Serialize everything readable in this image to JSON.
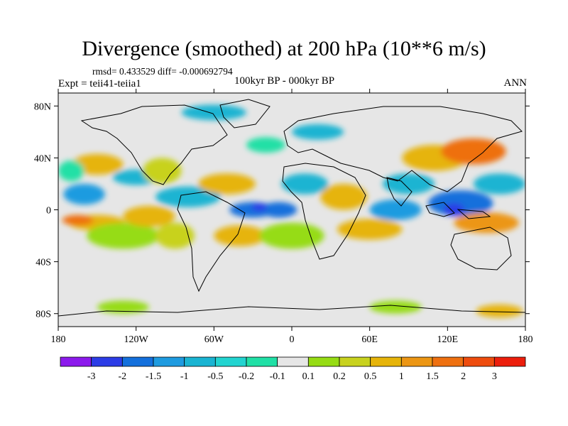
{
  "title": "Divergence (smoothed) at 200 hPa (10**6 m/s)",
  "stats": "rmsd= 0.433529 diff= -0.000692794",
  "experiment": "Expt = teii41-teiia1",
  "period": "100kyr BP - 000kyr BP",
  "season": "ANN",
  "map": {
    "projection": "cylindrical equidistant",
    "lon_range": [
      -180,
      180
    ],
    "lat_range": [
      -90,
      90
    ],
    "x_ticks": [
      {
        "value": -180,
        "label": "180"
      },
      {
        "value": -120,
        "label": "120W"
      },
      {
        "value": -60,
        "label": "60W"
      },
      {
        "value": 0,
        "label": "0"
      },
      {
        "value": 60,
        "label": "60E"
      },
      {
        "value": 120,
        "label": "120E"
      },
      {
        "value": 180,
        "label": "180"
      }
    ],
    "y_ticks": [
      {
        "value": 80,
        "label": "80N"
      },
      {
        "value": 40,
        "label": "40N"
      },
      {
        "value": 0,
        "label": "0"
      },
      {
        "value": -40,
        "label": "40S"
      },
      {
        "value": -80,
        "label": "80S"
      }
    ],
    "background_color": "#e6e6e6"
  },
  "colorbar": {
    "colors": [
      "#8c1aec",
      "#2c3ce6",
      "#1470dc",
      "#1e9be0",
      "#1ab4d2",
      "#22d4d0",
      "#20e0a6",
      "#e6e6e6",
      "#96dc14",
      "#c8d21e",
      "#e6b40a",
      "#ec9614",
      "#ee7010",
      "#ee4c0e",
      "#ec1e0c"
    ],
    "labels": [
      "-3",
      "-2",
      "-1.5",
      "-1",
      "-0.5",
      "-0.2",
      "-0.1",
      "0.1",
      "0.2",
      "0.5",
      "1",
      "1.5",
      "2",
      "3"
    ]
  },
  "regions": [
    {
      "lon": -160,
      "lat": 12,
      "rlon": 16,
      "rlat": 8,
      "c": "#1e9be0"
    },
    {
      "lon": -150,
      "lat": -10,
      "rlon": 22,
      "rlat": 6,
      "c": "#e6b40a"
    },
    {
      "lon": -165,
      "lat": -8,
      "rlon": 12,
      "rlat": 4,
      "c": "#ee7010"
    },
    {
      "lon": -130,
      "lat": -20,
      "rlon": 28,
      "rlat": 10,
      "c": "#96dc14"
    },
    {
      "lon": -150,
      "lat": 35,
      "rlon": 20,
      "rlat": 8,
      "c": "#e6b40a"
    },
    {
      "lon": -170,
      "lat": 30,
      "rlon": 10,
      "rlat": 8,
      "c": "#20e0a6"
    },
    {
      "lon": -120,
      "lat": 25,
      "rlon": 18,
      "rlat": 6,
      "c": "#1ab4d2"
    },
    {
      "lon": -100,
      "lat": 30,
      "rlon": 15,
      "rlat": 10,
      "c": "#c8d21e"
    },
    {
      "lon": -80,
      "lat": 10,
      "rlon": 25,
      "rlat": 8,
      "c": "#1ab4d2"
    },
    {
      "lon": -110,
      "lat": -5,
      "rlon": 20,
      "rlat": 8,
      "c": "#e6b40a"
    },
    {
      "lon": -90,
      "lat": -20,
      "rlon": 15,
      "rlat": 10,
      "c": "#c8d21e"
    },
    {
      "lon": -50,
      "lat": 20,
      "rlon": 22,
      "rlat": 8,
      "c": "#e6b40a"
    },
    {
      "lon": -30,
      "lat": 0,
      "rlon": 18,
      "rlat": 6,
      "c": "#1470dc"
    },
    {
      "lon": -10,
      "lat": 0,
      "rlon": 14,
      "rlat": 6,
      "c": "#1470dc"
    },
    {
      "lon": -25,
      "lat": 2,
      "rlon": 6,
      "rlat": 3,
      "c": "#2c3ce6"
    },
    {
      "lon": -40,
      "lat": -20,
      "rlon": 20,
      "rlat": 8,
      "c": "#e6b40a"
    },
    {
      "lon": 0,
      "lat": -20,
      "rlon": 25,
      "rlat": 10,
      "c": "#96dc14"
    },
    {
      "lon": 10,
      "lat": 20,
      "rlon": 18,
      "rlat": 8,
      "c": "#1ab4d2"
    },
    {
      "lon": 40,
      "lat": 10,
      "rlon": 18,
      "rlat": 10,
      "c": "#e6b40a"
    },
    {
      "lon": 60,
      "lat": -15,
      "rlon": 25,
      "rlat": 8,
      "c": "#e6b40a"
    },
    {
      "lon": 80,
      "lat": 0,
      "rlon": 20,
      "rlat": 8,
      "c": "#1e9be0"
    },
    {
      "lon": 90,
      "lat": 20,
      "rlon": 20,
      "rlat": 8,
      "c": "#1ab4d2"
    },
    {
      "lon": 110,
      "lat": 40,
      "rlon": 25,
      "rlat": 10,
      "c": "#e6b40a"
    },
    {
      "lon": 140,
      "lat": 45,
      "rlon": 25,
      "rlat": 10,
      "c": "#ee7010"
    },
    {
      "lon": 130,
      "lat": 5,
      "rlon": 25,
      "rlat": 10,
      "c": "#1470dc"
    },
    {
      "lon": 125,
      "lat": 0,
      "rlon": 8,
      "rlat": 5,
      "c": "#2c3ce6"
    },
    {
      "lon": 150,
      "lat": -10,
      "rlon": 25,
      "rlat": 8,
      "c": "#ec9614"
    },
    {
      "lon": 160,
      "lat": 20,
      "rlon": 20,
      "rlat": 8,
      "c": "#1ab4d2"
    },
    {
      "lon": -20,
      "lat": 50,
      "rlon": 15,
      "rlat": 6,
      "c": "#20e0a6"
    },
    {
      "lon": 20,
      "lat": 60,
      "rlon": 20,
      "rlat": 6,
      "c": "#1ab4d2"
    },
    {
      "lon": -60,
      "lat": 75,
      "rlon": 25,
      "rlat": 6,
      "c": "#1ab4d2"
    },
    {
      "lon": -130,
      "lat": -75,
      "rlon": 20,
      "rlat": 5,
      "c": "#96dc14"
    },
    {
      "lon": 80,
      "lat": -75,
      "rlon": 20,
      "rlat": 5,
      "c": "#96dc14"
    },
    {
      "lon": 160,
      "lat": -78,
      "rlon": 18,
      "rlat": 5,
      "c": "#e6b40a"
    }
  ]
}
